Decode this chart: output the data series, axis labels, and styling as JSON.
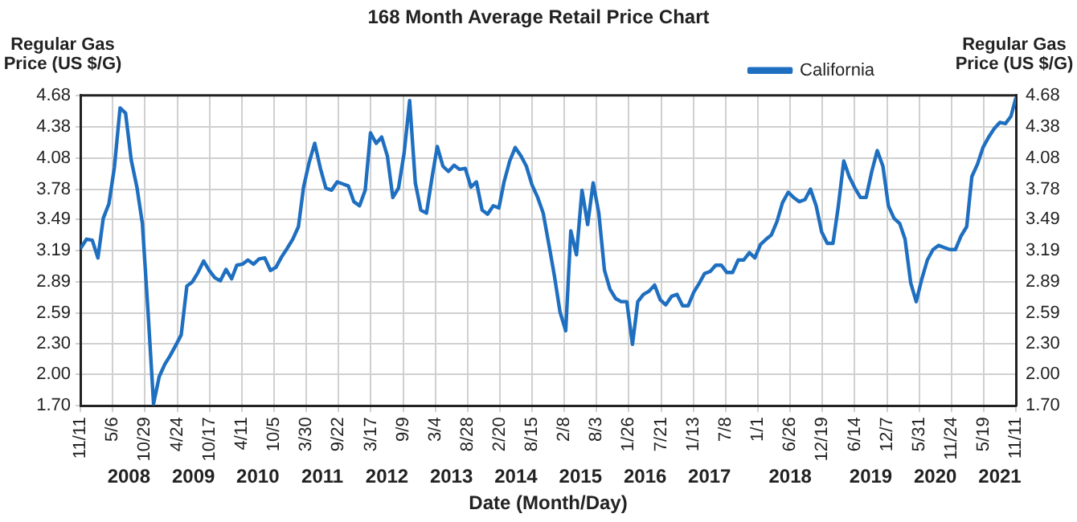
{
  "chart_data": {
    "type": "line",
    "title": "168 Month Average Retail Price Chart",
    "xlabel": "Date (Month/Day)",
    "ylabel": "Regular Gas Price (US $/G)",
    "y2label": "Regular Gas Price (US $/G)",
    "x": [
      "2007-11-15",
      "2007-12-15",
      "2008-01-15",
      "2008-02-15",
      "2008-03-15",
      "2008-04-15",
      "2008-05-15",
      "2008-06-15",
      "2008-07-15",
      "2008-08-15",
      "2008-09-15",
      "2008-10-15",
      "2008-11-15",
      "2008-12-15",
      "2009-01-15",
      "2009-02-15",
      "2009-03-15",
      "2009-04-15",
      "2009-05-15",
      "2009-06-15",
      "2009-07-15",
      "2009-08-15",
      "2009-09-15",
      "2009-10-15",
      "2009-11-15",
      "2009-12-15",
      "2010-01-15",
      "2010-02-15",
      "2010-03-15",
      "2010-04-15",
      "2010-05-15",
      "2010-06-15",
      "2010-07-15",
      "2010-08-15",
      "2010-09-15",
      "2010-10-15",
      "2010-11-15",
      "2010-12-15",
      "2011-01-15",
      "2011-02-15",
      "2011-03-15",
      "2011-04-15",
      "2011-05-15",
      "2011-06-15",
      "2011-07-15",
      "2011-08-15",
      "2011-09-15",
      "2011-10-15",
      "2011-11-15",
      "2011-12-15",
      "2012-01-15",
      "2012-02-15",
      "2012-03-15",
      "2012-04-15",
      "2012-05-15",
      "2012-06-15",
      "2012-07-15",
      "2012-08-15",
      "2012-09-15",
      "2012-10-15",
      "2012-11-15",
      "2012-12-15",
      "2013-01-15",
      "2013-02-15",
      "2013-03-15",
      "2013-04-15",
      "2013-05-15",
      "2013-06-15",
      "2013-07-15",
      "2013-08-15",
      "2013-09-15",
      "2013-10-15",
      "2013-11-15",
      "2013-12-15",
      "2014-01-15",
      "2014-02-15",
      "2014-03-15",
      "2014-04-15",
      "2014-05-15",
      "2014-06-15",
      "2014-07-15",
      "2014-08-15",
      "2014-09-15",
      "2014-10-15",
      "2014-11-15",
      "2014-12-15",
      "2015-01-15",
      "2015-02-15",
      "2015-03-15",
      "2015-04-15",
      "2015-05-15",
      "2015-06-15",
      "2015-07-15",
      "2015-08-15",
      "2015-09-15",
      "2015-10-15",
      "2015-11-15",
      "2015-12-15",
      "2016-01-15",
      "2016-02-15",
      "2016-03-15",
      "2016-04-15",
      "2016-05-15",
      "2016-06-15",
      "2016-07-15",
      "2016-08-15",
      "2016-09-15",
      "2016-10-15",
      "2016-11-15",
      "2016-12-15",
      "2017-01-15",
      "2017-02-15",
      "2017-03-15",
      "2017-04-15",
      "2017-05-15",
      "2017-06-15",
      "2017-07-15",
      "2017-08-15",
      "2017-09-15",
      "2017-10-15",
      "2017-11-15",
      "2017-12-15",
      "2018-01-15",
      "2018-02-15",
      "2018-03-15",
      "2018-04-15",
      "2018-05-15",
      "2018-06-15",
      "2018-07-15",
      "2018-08-15",
      "2018-09-15",
      "2018-10-15",
      "2018-11-15",
      "2018-12-15",
      "2019-01-15",
      "2019-02-15",
      "2019-03-15",
      "2019-04-15",
      "2019-05-15",
      "2019-06-15",
      "2019-07-15",
      "2019-08-15",
      "2019-09-15",
      "2019-10-15",
      "2019-11-15",
      "2019-12-15",
      "2020-01-15",
      "2020-02-15",
      "2020-03-15",
      "2020-04-15",
      "2020-05-15",
      "2020-06-15",
      "2020-07-15",
      "2020-08-15",
      "2020-09-15",
      "2020-10-15",
      "2020-11-15",
      "2020-12-15",
      "2021-01-15",
      "2021-02-15",
      "2021-03-15",
      "2021-04-15",
      "2021-05-15",
      "2021-06-15",
      "2021-07-15",
      "2021-08-15",
      "2021-09-15",
      "2021-10-15",
      "2021-11-10"
    ],
    "series": [
      {
        "name": "California",
        "color": "#1f6fc0",
        "values": [
          3.22,
          3.3,
          3.29,
          3.12,
          3.5,
          3.64,
          3.99,
          4.56,
          4.51,
          4.06,
          3.8,
          3.45,
          2.6,
          1.72,
          1.98,
          2.1,
          2.18,
          2.28,
          2.38,
          2.85,
          2.89,
          2.98,
          3.09,
          3.0,
          2.93,
          2.9,
          3.01,
          2.92,
          3.05,
          3.06,
          3.1,
          3.06,
          3.11,
          3.12,
          3.0,
          3.03,
          3.13,
          3.21,
          3.3,
          3.42,
          3.8,
          4.04,
          4.22,
          3.98,
          3.79,
          3.77,
          3.85,
          3.83,
          3.81,
          3.66,
          3.62,
          3.77,
          4.32,
          4.22,
          4.28,
          4.1,
          3.7,
          3.79,
          4.13,
          4.63,
          3.84,
          3.58,
          3.55,
          3.9,
          4.19,
          4.0,
          3.95,
          4.01,
          3.97,
          3.98,
          3.8,
          3.85,
          3.58,
          3.54,
          3.62,
          3.6,
          3.85,
          4.05,
          4.18,
          4.1,
          4.0,
          3.82,
          3.7,
          3.55,
          3.25,
          2.95,
          2.6,
          2.42,
          3.38,
          3.15,
          3.77,
          3.44,
          3.84,
          3.55,
          3.0,
          2.82,
          2.73,
          2.7,
          2.7,
          2.29,
          2.7,
          2.77,
          2.8,
          2.86,
          2.72,
          2.67,
          2.75,
          2.77,
          2.66,
          2.66,
          2.79,
          2.88,
          2.97,
          2.99,
          3.05,
          3.05,
          2.98,
          2.98,
          3.1,
          3.1,
          3.17,
          3.12,
          3.25,
          3.3,
          3.34,
          3.47,
          3.65,
          3.75,
          3.7,
          3.66,
          3.68,
          3.78,
          3.62,
          3.37,
          3.26,
          3.26,
          3.6,
          4.05,
          3.9,
          3.79,
          3.7,
          3.7,
          3.95,
          4.15,
          4.0,
          3.62,
          3.5,
          3.45,
          3.3,
          2.88,
          2.7,
          2.92,
          3.1,
          3.2,
          3.24,
          3.22,
          3.2,
          3.2,
          3.33,
          3.42,
          3.9,
          4.02,
          4.18,
          4.28,
          4.36,
          4.42,
          4.41,
          4.48,
          4.65
        ]
      }
    ],
    "xlim": [
      "2007-11-11",
      "2021-11-11"
    ],
    "xticks": [
      {
        "value": "2007-11-11",
        "label": "11/11"
      },
      {
        "value": "2008-05-06",
        "label": "5/6"
      },
      {
        "value": "2008-10-29",
        "label": "10/29"
      },
      {
        "value": "2009-04-24",
        "label": "4/24"
      },
      {
        "value": "2009-10-17",
        "label": "10/17"
      },
      {
        "value": "2010-04-11",
        "label": "4/11"
      },
      {
        "value": "2010-10-05",
        "label": "10/5"
      },
      {
        "value": "2011-03-30",
        "label": "3/30"
      },
      {
        "value": "2011-09-22",
        "label": "9/22"
      },
      {
        "value": "2012-03-17",
        "label": "3/17"
      },
      {
        "value": "2012-09-09",
        "label": "9/9"
      },
      {
        "value": "2013-03-04",
        "label": "3/4"
      },
      {
        "value": "2013-08-28",
        "label": "8/28"
      },
      {
        "value": "2014-02-20",
        "label": "2/20"
      },
      {
        "value": "2014-08-15",
        "label": "8/15"
      },
      {
        "value": "2015-02-08",
        "label": "2/8"
      },
      {
        "value": "2015-08-03",
        "label": "8/3"
      },
      {
        "value": "2016-01-26",
        "label": "1/26"
      },
      {
        "value": "2016-07-21",
        "label": "7/21"
      },
      {
        "value": "2017-01-13",
        "label": "1/13"
      },
      {
        "value": "2017-07-08",
        "label": "7/8"
      },
      {
        "value": "2018-01-01",
        "label": "1/1"
      },
      {
        "value": "2018-06-26",
        "label": "6/26"
      },
      {
        "value": "2018-12-19",
        "label": "12/19"
      },
      {
        "value": "2019-06-14",
        "label": "6/14"
      },
      {
        "value": "2019-12-07",
        "label": "12/7"
      },
      {
        "value": "2020-05-31",
        "label": "5/31"
      },
      {
        "value": "2020-11-24",
        "label": "11/24"
      },
      {
        "value": "2021-05-19",
        "label": "5/19"
      },
      {
        "value": "2021-11-11",
        "label": "11/11"
      }
    ],
    "x2lim": [
      "2007-11-11",
      "2021-11-11"
    ],
    "x2ticks": [
      {
        "value": "2008-08-02",
        "label": "2008"
      },
      {
        "value": "2009-07-21",
        "label": "2009"
      },
      {
        "value": "2010-07-08",
        "label": "2010"
      },
      {
        "value": "2011-06-26",
        "label": "2011"
      },
      {
        "value": "2012-06-13",
        "label": "2012"
      },
      {
        "value": "2013-05-31",
        "label": "2013"
      },
      {
        "value": "2014-05-19",
        "label": "2014"
      },
      {
        "value": "2015-05-07",
        "label": "2015"
      },
      {
        "value": "2016-04-24",
        "label": "2016"
      },
      {
        "value": "2017-04-11",
        "label": "2017"
      },
      {
        "value": "2018-06-26",
        "label": "2018"
      },
      {
        "value": "2019-09-10",
        "label": "2019"
      },
      {
        "value": "2020-08-27",
        "label": "2020"
      },
      {
        "value": "2021-08-15",
        "label": "2021"
      }
    ],
    "ylim": [
      1.7,
      4.68
    ],
    "yticks": [
      {
        "value": 1.7,
        "label": "1.70"
      },
      {
        "value": 2.0,
        "label": "2.00"
      },
      {
        "value": 2.3,
        "label": "2.30"
      },
      2.59,
      2.89,
      3.19,
      3.49,
      3.78,
      4.08,
      4.38,
      4.68
    ],
    "y2lim": [
      1.7,
      4.68
    ],
    "y2ticks": [
      {
        "value": 1.7,
        "label": "1.70"
      },
      {
        "value": 2.0,
        "label": "2.00"
      },
      {
        "value": 2.3,
        "label": "2.30"
      },
      2.59,
      2.89,
      3.19,
      3.49,
      3.78,
      4.08,
      4.38,
      4.68
    ],
    "grid": true,
    "legend": "top right",
    "marker": "none",
    "line_style": "solid"
  }
}
